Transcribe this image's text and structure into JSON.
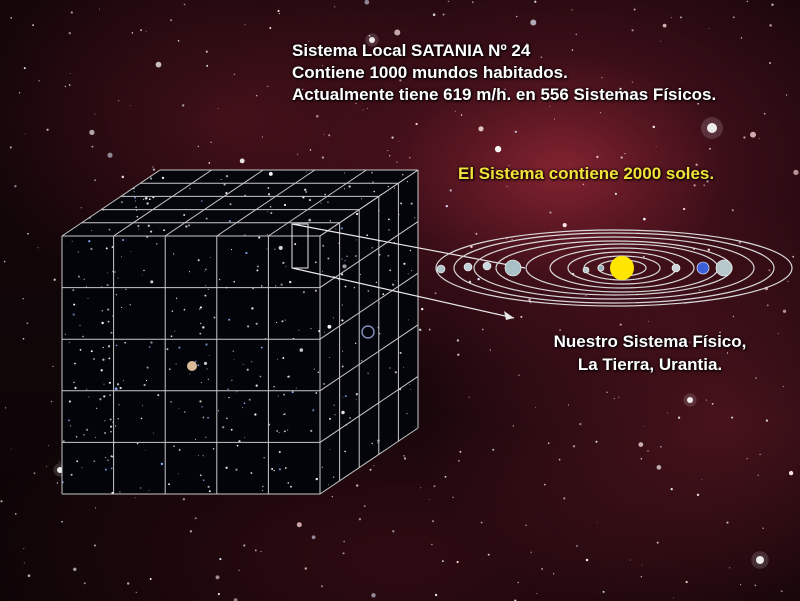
{
  "title_lines": [
    "Sistema Local SATANIA Nº 24",
    "Contiene 1000 mundos habitados.",
    "Actualmente tiene 619 m/h. en 556 Sistemas Físicos."
  ],
  "suns_caption": "El Sistema contiene 2000 soles.",
  "our_system_lines": [
    "Nuestro Sistema Físico,",
    "La Tierra, Urantia."
  ],
  "colors": {
    "caption_yellow": "#f4e23a",
    "text_white": "#ffffff",
    "sun": "#ffe500",
    "nebula": "#96283a"
  }
}
